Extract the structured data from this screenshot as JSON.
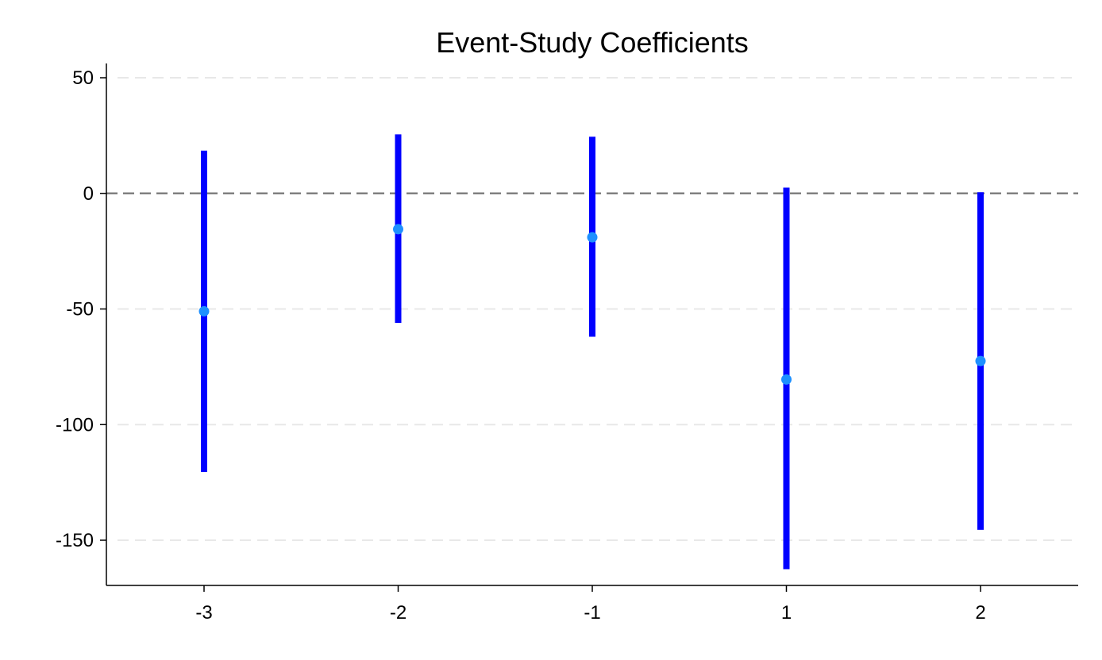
{
  "chart_data": {
    "type": "scatter",
    "title": "Event-Study Coefficients",
    "xlabel": "",
    "ylabel": "",
    "categories": [
      "-3",
      "-2",
      "-1",
      "1",
      "2"
    ],
    "x_ticks": [
      "-3",
      "-2",
      "-1",
      "1",
      "2"
    ],
    "y_ticks": [
      50,
      0,
      -50,
      -100,
      -150
    ],
    "ylim": [
      -170,
      55
    ],
    "reference_line": 0,
    "grid": true,
    "legend": "none",
    "series": [
      {
        "estimates": [
          -51,
          -15.5,
          -19,
          -80.5,
          -72.5
        ],
        "ci_upper": [
          18.5,
          25.5,
          24.5,
          2.5,
          0.5
        ],
        "ci_lower": [
          -120.5,
          -56,
          -62,
          -162.5,
          -145.5
        ]
      }
    ],
    "colors": {
      "ci_bar": "#0000ff",
      "point": "#1e90ff",
      "reference_line": "#808080",
      "grid": "#e8e8e8",
      "axis": "#000000"
    }
  }
}
